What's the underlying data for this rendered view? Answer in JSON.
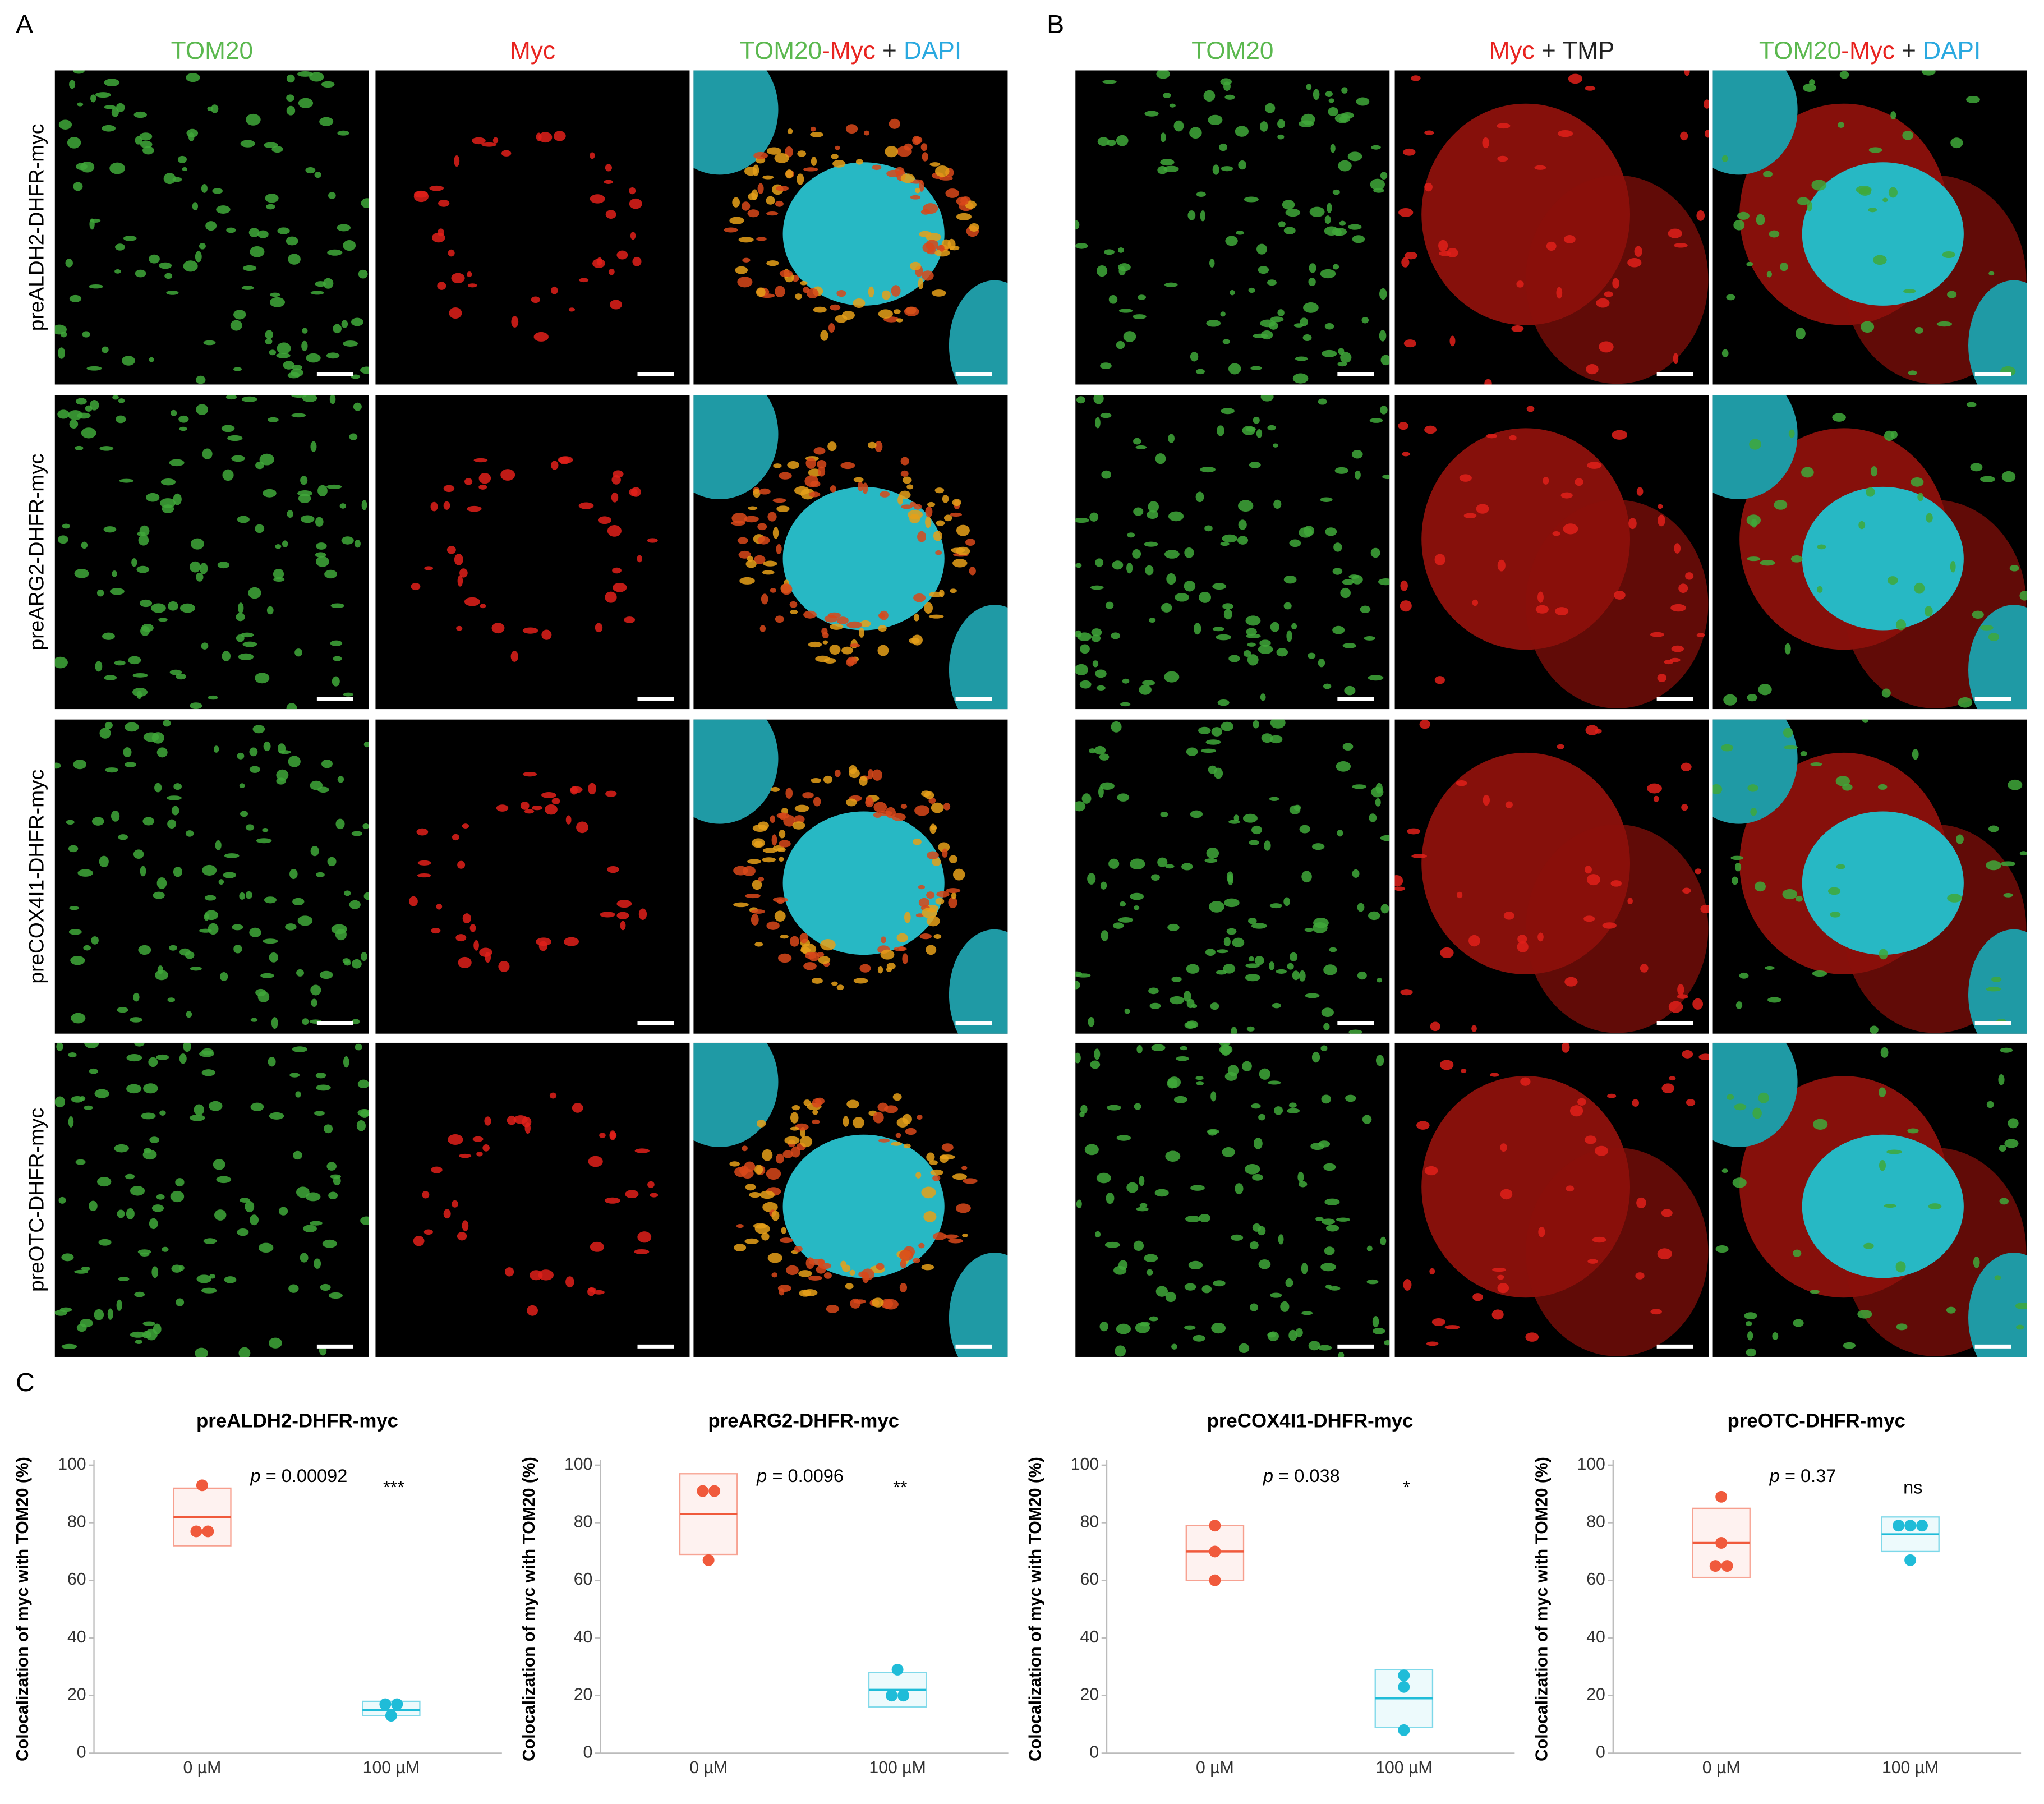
{
  "panel_a": {
    "label": "A",
    "headers": [
      [
        {
          "text": "TOM20",
          "color": "#5bb84f"
        }
      ],
      [
        {
          "text": "Myc",
          "color": "#e8231f"
        }
      ],
      [
        {
          "text": "TOM20",
          "color": "#5bb84f"
        },
        {
          "text": "-Myc",
          "color": "#e8231f"
        },
        {
          "text": " + ",
          "color": "#222222"
        },
        {
          "text": "DAPI",
          "color": "#2aa9e0"
        }
      ]
    ],
    "rows": [
      "preALDH2-DHFR-myc",
      "preARG2-DHFR-myc",
      "preCOX4I1-DHFR-myc",
      "preOTC-DHFR-myc"
    ]
  },
  "panel_b": {
    "label": "B",
    "headers": [
      [
        {
          "text": "TOM20",
          "color": "#5bb84f"
        }
      ],
      [
        {
          "text": "Myc",
          "color": "#e8231f"
        },
        {
          "text": " + TMP",
          "color": "#222222"
        }
      ],
      [
        {
          "text": "TOM20",
          "color": "#5bb84f"
        },
        {
          "text": "-Myc",
          "color": "#e8231f"
        },
        {
          "text": " + ",
          "color": "#222222"
        },
        {
          "text": "DAPI",
          "color": "#2aa9e0"
        }
      ]
    ]
  },
  "panel_c": {
    "label": "C"
  },
  "chart_data": [
    {
      "type": "strip-box",
      "title": "preALDH2-DHFR-myc",
      "ylabel": "Colocalization of myc with TOM20 (%)",
      "categories": [
        "0 µM",
        "100 µM"
      ],
      "ylim": [
        0,
        100
      ],
      "yticks": [
        0,
        20,
        40,
        60,
        80,
        100
      ],
      "p_symbol": "p",
      "p_text": "= 0.00092",
      "significance": "***",
      "groups": [
        {
          "color": "#f05a3c",
          "points": [
            93,
            77,
            77
          ],
          "box": {
            "low": 72,
            "median": 82,
            "high": 92
          }
        },
        {
          "color": "#1fbcd8",
          "points": [
            17,
            17,
            13
          ],
          "box": {
            "low": 13,
            "median": 15,
            "high": 18
          }
        }
      ]
    },
    {
      "type": "strip-box",
      "title": "preARG2-DHFR-myc",
      "ylabel": "Colocalization of myc with TOM20 (%)",
      "categories": [
        "0 µM",
        "100 µM"
      ],
      "ylim": [
        0,
        100
      ],
      "yticks": [
        0,
        20,
        40,
        60,
        80,
        100
      ],
      "p_symbol": "p",
      "p_text": "= 0.0096",
      "significance": "**",
      "groups": [
        {
          "color": "#f05a3c",
          "points": [
            91,
            91,
            67
          ],
          "box": {
            "low": 69,
            "median": 83,
            "high": 97
          }
        },
        {
          "color": "#1fbcd8",
          "points": [
            29,
            20,
            20
          ],
          "box": {
            "low": 16,
            "median": 22,
            "high": 28
          }
        }
      ]
    },
    {
      "type": "strip-box",
      "title": "preCOX4I1-DHFR-myc",
      "ylabel": "Colocalization of myc with TOM20 (%)",
      "categories": [
        "0 µM",
        "100 µM"
      ],
      "ylim": [
        0,
        100
      ],
      "yticks": [
        0,
        20,
        40,
        60,
        80,
        100
      ],
      "p_symbol": "p",
      "p_text": "= 0.038",
      "significance": "*",
      "groups": [
        {
          "color": "#f05a3c",
          "points": [
            79,
            70,
            60
          ],
          "box": {
            "low": 60,
            "median": 70,
            "high": 79
          }
        },
        {
          "color": "#1fbcd8",
          "points": [
            27,
            23,
            8
          ],
          "box": {
            "low": 9,
            "median": 19,
            "high": 29
          }
        }
      ]
    },
    {
      "type": "strip-box",
      "title": "preOTC-DHFR-myc",
      "ylabel": "Colocalization of myc with TOM20 (%)",
      "categories": [
        "0 µM",
        "100 µM"
      ],
      "ylim": [
        0,
        100
      ],
      "yticks": [
        0,
        20,
        40,
        60,
        80,
        100
      ],
      "p_symbol": "p",
      "p_text": "= 0.37",
      "significance": "ns",
      "groups": [
        {
          "color": "#f05a3c",
          "points": [
            89,
            73,
            65,
            65
          ],
          "box": {
            "low": 61,
            "median": 73,
            "high": 85
          }
        },
        {
          "color": "#1fbcd8",
          "points": [
            79,
            79,
            79,
            67
          ],
          "box": {
            "low": 70,
            "median": 76,
            "high": 82
          }
        }
      ]
    }
  ]
}
